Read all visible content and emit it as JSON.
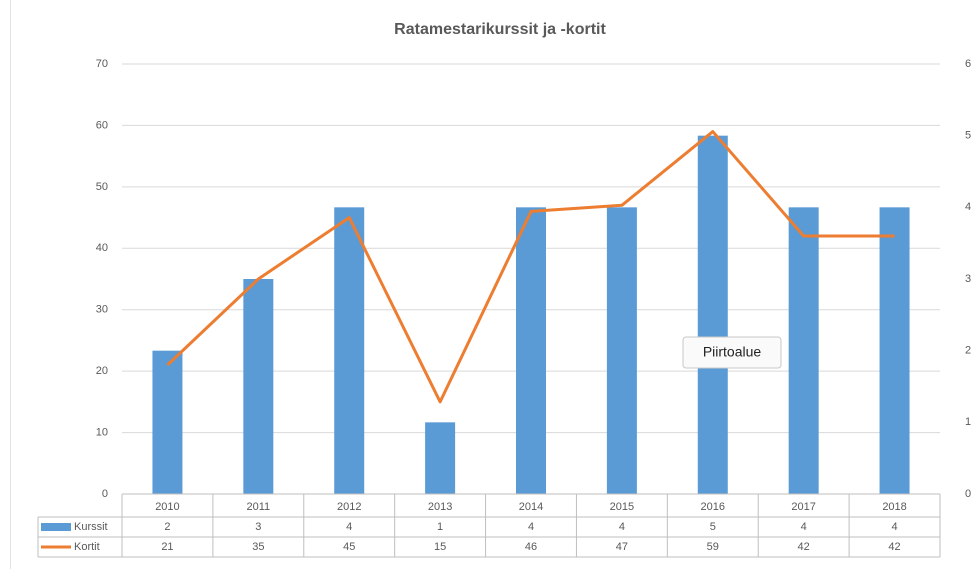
{
  "chart_data": {
    "type": "bar-line",
    "title": "Ratamestarikurssit ja -kortit",
    "categories": [
      "2010",
      "2011",
      "2012",
      "2013",
      "2014",
      "2015",
      "2016",
      "2017",
      "2018"
    ],
    "series": [
      {
        "name": "Kurssit",
        "type": "bar",
        "color": "#5b9bd5",
        "axis": "y2",
        "values": [
          2,
          3,
          4,
          1,
          4,
          4,
          5,
          4,
          4
        ]
      },
      {
        "name": "Kortit",
        "type": "line",
        "color": "#ed7d31",
        "values": [
          21,
          35,
          45,
          15,
          46,
          47,
          59,
          42,
          42
        ]
      }
    ],
    "ylim": [
      0,
      70
    ],
    "yticks": [
      0,
      10,
      20,
      30,
      40,
      50,
      60,
      70
    ],
    "y2lim": [
      0,
      6
    ],
    "y2ticks": [
      0,
      1,
      2,
      3,
      4,
      5,
      6
    ],
    "grid": true,
    "tooltip": "Piirtoalue"
  }
}
